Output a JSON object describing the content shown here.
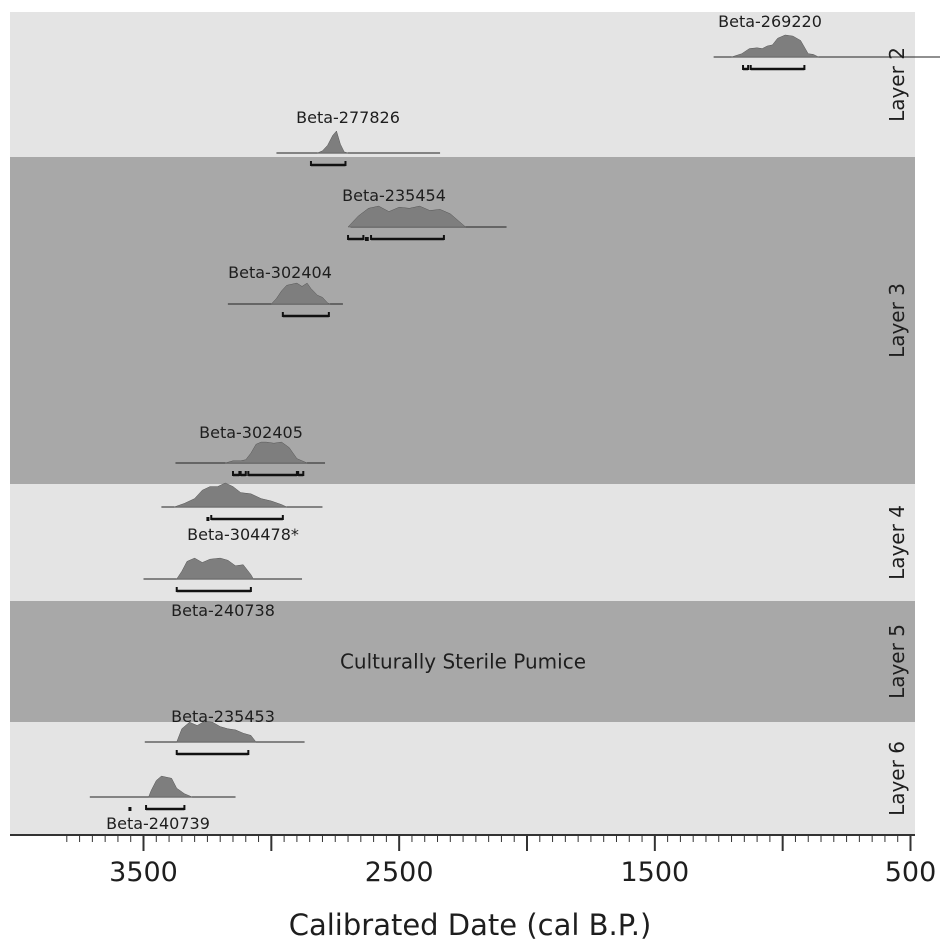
{
  "chart_data": {
    "type": "calibration-plot",
    "xlabel": "Calibrated Date (cal B.P.)",
    "x_reversed": true,
    "xlim": [
      3800,
      500
    ],
    "x_ticks": [
      3500,
      2500,
      1500,
      500
    ],
    "colors": {
      "light_band": "#e4e4e4",
      "dark_band": "#a8a8a8",
      "distribution": "#7e7e7e",
      "range_bar": "#111111"
    },
    "layers": [
      {
        "label": "Layer 2",
        "shade": "light",
        "note": ""
      },
      {
        "label": "Layer 3",
        "shade": "dark",
        "note": ""
      },
      {
        "label": "Layer 4",
        "shade": "light",
        "note": ""
      },
      {
        "label": "Layer 5",
        "shade": "dark",
        "note": "Culturally Sterile Pumice"
      },
      {
        "label": "Layer 6",
        "shade": "light",
        "note": ""
      }
    ],
    "samples": [
      {
        "id": "Beta-269220",
        "layer": "Layer 2",
        "baseline": [
          1270,
          310
        ],
        "distribution": [
          [
            1200,
            0
          ],
          [
            1160,
            0.15
          ],
          [
            1130,
            0.38
          ],
          [
            1100,
            0.42
          ],
          [
            1080,
            0.38
          ],
          [
            1060,
            0.5
          ],
          [
            1040,
            0.55
          ],
          [
            1020,
            0.85
          ],
          [
            990,
            1
          ],
          [
            960,
            0.95
          ],
          [
            930,
            0.75
          ],
          [
            900,
            0.15
          ],
          [
            880,
            0.12
          ],
          [
            860,
            0
          ]
        ],
        "ranges": [
          [
            1155,
            1135
          ],
          [
            1125,
            915
          ]
        ]
      },
      {
        "id": "Beta-277826",
        "layer": "Layer 2",
        "baseline": [
          2980,
          2340
        ],
        "distribution": [
          [
            2820,
            0
          ],
          [
            2800,
            0.1
          ],
          [
            2780,
            0.35
          ],
          [
            2760,
            0.8
          ],
          [
            2745,
            1
          ],
          [
            2730,
            0.4
          ],
          [
            2715,
            0.05
          ],
          [
            2700,
            0
          ]
        ],
        "ranges": [
          [
            2845,
            2710
          ]
        ]
      },
      {
        "id": "Beta-235454",
        "layer": "Layer 3",
        "baseline": [
          2690,
          2080
        ],
        "distribution": [
          [
            2700,
            0
          ],
          [
            2660,
            0.5
          ],
          [
            2620,
            0.85
          ],
          [
            2580,
            0.95
          ],
          [
            2540,
            0.7
          ],
          [
            2500,
            0.9
          ],
          [
            2460,
            0.85
          ],
          [
            2420,
            0.95
          ],
          [
            2380,
            0.75
          ],
          [
            2340,
            0.8
          ],
          [
            2300,
            0.6
          ],
          [
            2260,
            0.2
          ],
          [
            2240,
            0
          ]
        ],
        "ranges": [
          [
            2700,
            2640
          ],
          [
            2630,
            2615
          ],
          [
            2610,
            2325
          ]
        ]
      },
      {
        "id": "Beta-302404",
        "layer": "Layer 3",
        "baseline": [
          3170,
          2720
        ],
        "distribution": [
          [
            3000,
            0
          ],
          [
            2980,
            0.25
          ],
          [
            2960,
            0.6
          ],
          [
            2940,
            0.85
          ],
          [
            2920,
            0.9
          ],
          [
            2900,
            0.95
          ],
          [
            2880,
            0.8
          ],
          [
            2860,
            0.95
          ],
          [
            2845,
            0.7
          ],
          [
            2820,
            0.4
          ],
          [
            2800,
            0.3
          ],
          [
            2780,
            0.05
          ],
          [
            2770,
            0
          ]
        ],
        "ranges": [
          [
            2955,
            2775
          ]
        ]
      },
      {
        "id": "Beta-302405",
        "layer": "Layer 3",
        "baseline": [
          3375,
          2790
        ],
        "distribution": [
          [
            3180,
            0
          ],
          [
            3150,
            0.1
          ],
          [
            3120,
            0.1
          ],
          [
            3100,
            0.15
          ],
          [
            3080,
            0.45
          ],
          [
            3060,
            0.85
          ],
          [
            3040,
            0.95
          ],
          [
            3020,
            0.95
          ],
          [
            2990,
            0.9
          ],
          [
            2960,
            0.95
          ],
          [
            2930,
            0.7
          ],
          [
            2900,
            0.2
          ],
          [
            2870,
            0.05
          ],
          [
            2860,
            0
          ]
        ],
        "ranges": [
          [
            3150,
            3125
          ],
          [
            3120,
            3100
          ],
          [
            3090,
            2900
          ],
          [
            2895,
            2875
          ]
        ]
      },
      {
        "id": "Beta-304478*",
        "layer": "Layer 4",
        "baseline": [
          3430,
          2800
        ],
        "distribution": [
          [
            3380,
            0
          ],
          [
            3340,
            0.15
          ],
          [
            3300,
            0.35
          ],
          [
            3270,
            0.7
          ],
          [
            3240,
            0.85
          ],
          [
            3210,
            0.85
          ],
          [
            3180,
            1
          ],
          [
            3150,
            0.85
          ],
          [
            3120,
            0.6
          ],
          [
            3080,
            0.55
          ],
          [
            3040,
            0.35
          ],
          [
            3000,
            0.25
          ],
          [
            2960,
            0.1
          ],
          [
            2940,
            0
          ]
        ],
        "ranges": [
          [
            3250,
            3240
          ],
          [
            3235,
            2955
          ]
        ]
      },
      {
        "id": "Beta-240738",
        "layer": "Layer 4",
        "baseline": [
          3500,
          2880
        ],
        "distribution": [
          [
            3370,
            0
          ],
          [
            3350,
            0.35
          ],
          [
            3330,
            0.8
          ],
          [
            3300,
            0.95
          ],
          [
            3270,
            0.75
          ],
          [
            3240,
            0.9
          ],
          [
            3200,
            0.95
          ],
          [
            3170,
            0.85
          ],
          [
            3140,
            0.6
          ],
          [
            3110,
            0.65
          ],
          [
            3080,
            0.2
          ],
          [
            3070,
            0
          ]
        ],
        "ranges": [
          [
            3370,
            3080
          ]
        ]
      },
      {
        "id": "Beta-235453",
        "layer": "Layer 6",
        "baseline": [
          3495,
          2870
        ],
        "distribution": [
          [
            3370,
            0
          ],
          [
            3350,
            0.6
          ],
          [
            3320,
            0.9
          ],
          [
            3290,
            0.75
          ],
          [
            3260,
            0.95
          ],
          [
            3230,
            0.9
          ],
          [
            3200,
            0.7
          ],
          [
            3170,
            0.6
          ],
          [
            3140,
            0.55
          ],
          [
            3110,
            0.4
          ],
          [
            3080,
            0.3
          ],
          [
            3060,
            0
          ]
        ],
        "ranges": [
          [
            3370,
            3090
          ]
        ]
      },
      {
        "id": "Beta-240739",
        "layer": "Layer 6",
        "baseline": [
          3710,
          3140
        ],
        "distribution": [
          [
            3480,
            0
          ],
          [
            3470,
            0.3
          ],
          [
            3450,
            0.75
          ],
          [
            3430,
            0.95
          ],
          [
            3410,
            0.9
          ],
          [
            3390,
            0.85
          ],
          [
            3370,
            0.4
          ],
          [
            3340,
            0.15
          ],
          [
            3310,
            0
          ]
        ],
        "ranges": [
          [
            3555,
            3545
          ],
          [
            3490,
            3340
          ]
        ]
      }
    ]
  }
}
